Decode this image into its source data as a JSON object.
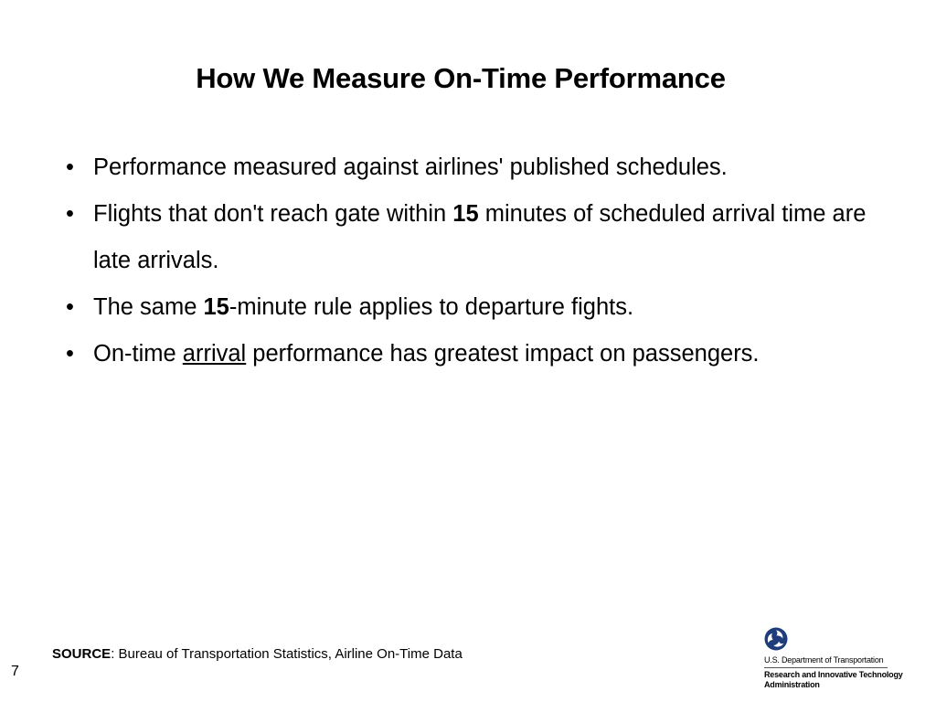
{
  "slide": {
    "title": "How We Measure On-Time Performance",
    "bullet_symbol": "•",
    "bullets": [
      {
        "text": "Performance measured against airlines' published schedules."
      },
      {
        "before": "Flights that don't reach gate within ",
        "emphasis": "15",
        "after": " minutes of scheduled arrival time are late arrivals."
      },
      {
        "before": "The same ",
        "emphasis": "15",
        "after": "-minute rule applies to departure fights."
      },
      {
        "before": "On-time ",
        "emphasis": "arrival",
        "after": " performance has greatest impact on passengers."
      }
    ],
    "source_label": "SOURCE",
    "source_text": ": Bureau of Transportation Statistics, Airline On-Time Data",
    "page_number": "7"
  },
  "logo": {
    "icon": "dot-triskelion-icon",
    "department": "U.S. Department of Transportation",
    "agency": "Research and Innovative Technology Administration",
    "color": "#1f3d7a"
  }
}
